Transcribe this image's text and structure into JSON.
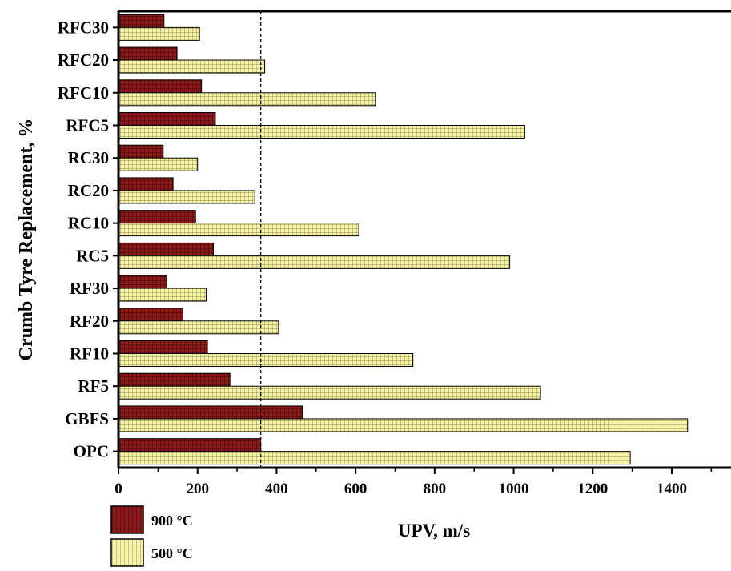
{
  "chart_data": {
    "type": "bar",
    "orientation": "horizontal",
    "title": "",
    "xlabel": "UPV, m/s",
    "ylabel": "Crumb Tyre Replacement, %",
    "categories": [
      "OPC",
      "GBFS",
      "RF5",
      "RF10",
      "RF20",
      "RF30",
      "RC5",
      "RC10",
      "RC20",
      "RC30",
      "RFC5",
      "RFC10",
      "RFC20",
      "RFC30"
    ],
    "series": [
      {
        "name": "900 °C",
        "color": "#8b1a1a",
        "values": [
          360,
          465,
          282,
          225,
          163,
          122,
          240,
          195,
          138,
          113,
          245,
          210,
          148,
          115
        ]
      },
      {
        "name": "500 °C",
        "color": "#f7f4a6",
        "values": [
          1295,
          1440,
          1068,
          745,
          405,
          222,
          990,
          608,
          345,
          200,
          1028,
          650,
          370,
          205
        ]
      }
    ],
    "xlim": [
      0,
      1550
    ],
    "xticks": [
      0,
      200,
      400,
      600,
      800,
      1000,
      1200,
      1400
    ],
    "reference_line": {
      "value": 360,
      "style": "dashed"
    },
    "grid": false,
    "legend_position": "bottom-left"
  }
}
